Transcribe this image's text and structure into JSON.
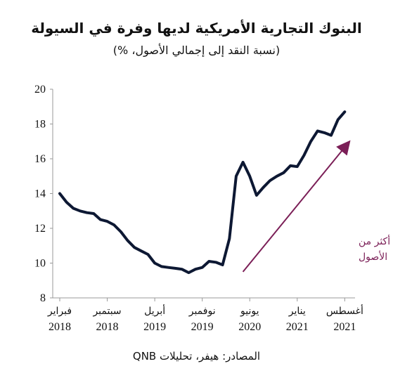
{
  "chart_data": {
    "type": "line",
    "title": "البنوك التجارية الأمريكية لديها وفرة في السيولة",
    "subtitle": "(نسبة النقد إلى إجمالي الأصول، %)",
    "source": "المصادر: هيفر، تحليلات QNB",
    "ylim": [
      8,
      20
    ],
    "yticks": [
      8,
      10,
      12,
      14,
      16,
      18,
      20
    ],
    "xlim": [
      "2018-02",
      "2021-09"
    ],
    "xticks": [
      {
        "date": "2018-02",
        "month": "فبراير",
        "year": "2018"
      },
      {
        "date": "2018-09",
        "month": "سبتمبر",
        "year": "2018"
      },
      {
        "date": "2019-04",
        "month": "أبريل",
        "year": "2019"
      },
      {
        "date": "2019-11",
        "month": "نوفمبر",
        "year": "2019"
      },
      {
        "date": "2020-06",
        "month": "يونيو",
        "year": "2020"
      },
      {
        "date": "2021-01",
        "month": "يناير",
        "year": "2021"
      },
      {
        "date": "2021-08",
        "month": "أغسطس",
        "year": "2021"
      }
    ],
    "series": [
      {
        "color": "#0d1833",
        "points": [
          [
            "2018-02",
            14.0
          ],
          [
            "2018-03",
            13.5
          ],
          [
            "2018-04",
            13.15
          ],
          [
            "2018-05",
            13.0
          ],
          [
            "2018-06",
            12.9
          ],
          [
            "2018-07",
            12.85
          ],
          [
            "2018-08",
            12.5
          ],
          [
            "2018-09",
            12.4
          ],
          [
            "2018-10",
            12.2
          ],
          [
            "2018-11",
            11.8
          ],
          [
            "2018-12",
            11.3
          ],
          [
            "2019-01",
            10.9
          ],
          [
            "2019-02",
            10.7
          ],
          [
            "2019-03",
            10.5
          ],
          [
            "2019-04",
            10.0
          ],
          [
            "2019-05",
            9.8
          ],
          [
            "2019-06",
            9.75
          ],
          [
            "2019-07",
            9.7
          ],
          [
            "2019-08",
            9.65
          ],
          [
            "2019-09",
            9.45
          ],
          [
            "2019-10",
            9.65
          ],
          [
            "2019-11",
            9.75
          ],
          [
            "2019-12",
            10.1
          ],
          [
            "2020-01",
            10.05
          ],
          [
            "2020-02",
            9.9
          ],
          [
            "2020-03",
            11.4
          ],
          [
            "2020-04",
            15.0
          ],
          [
            "2020-05",
            15.8
          ],
          [
            "2020-06",
            15.0
          ],
          [
            "2020-07",
            13.9
          ],
          [
            "2020-08",
            14.35
          ],
          [
            "2020-09",
            14.75
          ],
          [
            "2020-10",
            15.0
          ],
          [
            "2020-11",
            15.2
          ],
          [
            "2020-12",
            15.6
          ],
          [
            "2021-01",
            15.55
          ],
          [
            "2021-02",
            16.2
          ],
          [
            "2021-03",
            17.0
          ],
          [
            "2021-04",
            17.6
          ],
          [
            "2021-05",
            17.5
          ],
          [
            "2021-06",
            17.35
          ],
          [
            "2021-07",
            18.25
          ],
          [
            "2021-08",
            18.7
          ]
        ]
      }
    ],
    "annotation": {
      "text_line1": "زيادة النقد أكثر من",
      "text_line2": "الأصول",
      "color": "#7b1f57",
      "arrow_from": [
        "2020-05",
        9.5
      ],
      "arrow_to": [
        "2021-09",
        17.1
      ]
    },
    "grid": false
  }
}
